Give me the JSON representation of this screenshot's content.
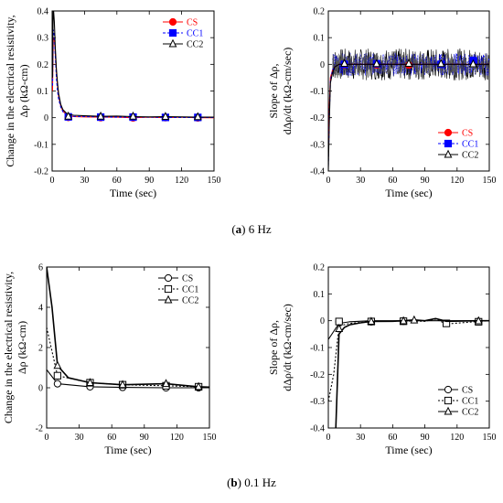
{
  "captions": {
    "a_letter": "a",
    "a_rest": "6 Hz",
    "b_letter": "b",
    "b_rest": "0.1 Hz"
  },
  "chart_data": [
    {
      "id": "a_left",
      "type": "line",
      "xlabel": "Time (sec)",
      "ylabel_line1": "Change in the electrical resistivity,",
      "ylabel_line2": "Δρ (kΩ-cm)",
      "xlim": [
        0,
        150
      ],
      "ylim": [
        -0.2,
        0.4
      ],
      "xticks": [
        "0",
        "30",
        "60",
        "90",
        "120",
        "150"
      ],
      "yticks": [
        "-0.2",
        "-0.1",
        "0",
        "0.1",
        "0.2",
        "0.3",
        "0.4"
      ],
      "legend_position": "top-right",
      "series": [
        {
          "name": "CS",
          "color": "#ff0000",
          "marker": "circle-filled",
          "dash": "",
          "x": [
            0.3,
            1,
            2,
            3,
            4,
            5,
            6,
            8,
            10,
            13,
            15,
            20,
            30,
            45,
            60,
            75,
            90,
            105,
            120,
            135,
            150
          ],
          "y": [
            0.1,
            0.29,
            0.3,
            0.24,
            0.17,
            0.12,
            0.08,
            0.045,
            0.025,
            0.012,
            0.008,
            0.004,
            0.003,
            0.002,
            0.002,
            0.0,
            0.002,
            0.0,
            0.002,
            0.0,
            0.0
          ],
          "marker_x": [
            15,
            45,
            75,
            105,
            135
          ],
          "marker_y": [
            0.001,
            0.0,
            -0.001,
            0.0,
            -0.001
          ]
        },
        {
          "name": "CC1",
          "color": "#0000ff",
          "marker": "square-filled",
          "dash": "3,2",
          "x": [
            0.3,
            1,
            2,
            3,
            4,
            5,
            6,
            8,
            10,
            13,
            15,
            20,
            30,
            45,
            60,
            75,
            90,
            105,
            120,
            135,
            150
          ],
          "y": [
            0.12,
            0.33,
            0.31,
            0.23,
            0.15,
            0.1,
            0.07,
            0.04,
            0.022,
            0.012,
            0.008,
            0.005,
            0.004,
            0.003,
            0.002,
            0.002,
            0.002,
            0.001,
            0.001,
            0.001,
            0.001
          ],
          "marker_x": [
            15,
            45,
            75,
            105,
            135
          ],
          "marker_y": [
            0.003,
            0.002,
            0.002,
            0.001,
            0.001
          ]
        },
        {
          "name": "CC2",
          "color": "#000000",
          "marker": "triangle-open",
          "dash": "",
          "x": [
            0.3,
            1,
            2,
            3,
            4,
            5,
            6,
            8,
            10,
            13,
            15,
            20,
            30,
            45,
            60,
            75,
            90,
            105,
            120,
            135,
            150
          ],
          "y": [
            0.15,
            0.42,
            0.36,
            0.26,
            0.18,
            0.13,
            0.09,
            0.05,
            0.03,
            0.018,
            0.012,
            0.009,
            0.007,
            0.005,
            0.006,
            0.004,
            0.003,
            0.004,
            0.003,
            0.002,
            0.002
          ],
          "marker_x": [
            15,
            45,
            75,
            105,
            135
          ],
          "marker_y": [
            0.005,
            0.005,
            0.005,
            0.004,
            0.003
          ]
        }
      ]
    },
    {
      "id": "a_right",
      "type": "line",
      "xlabel": "Time (sec)",
      "ylabel_line1": "Slope of Δρ,",
      "ylabel_line2": "dΔρ/dt (kΩ-cm/sec)",
      "xlim": [
        0,
        150
      ],
      "ylim": [
        -0.4,
        0.2
      ],
      "xticks": [
        "0",
        "30",
        "60",
        "90",
        "120",
        "150"
      ],
      "yticks": [
        "-0.4",
        "-0.3",
        "-0.2",
        "-0.1",
        "0",
        "0.1",
        "0.2"
      ],
      "legend_position": "bottom-right",
      "noise_amplitude": 0.06,
      "series": [
        {
          "name": "CS",
          "color": "#ff0000",
          "marker": "circle-filled",
          "dash": "",
          "x": [
            0,
            1,
            2,
            4,
            6,
            10,
            15,
            150
          ],
          "y": [
            -0.35,
            -0.15,
            -0.05,
            -0.02,
            -0.01,
            0,
            0,
            0
          ],
          "marker_x": [
            15,
            45,
            75
          ],
          "marker_y": [
            -0.002,
            -0.002,
            -0.003
          ]
        },
        {
          "name": "CC1",
          "color": "#0000ff",
          "marker": "square-filled",
          "dash": "3,2",
          "x": [
            0,
            1,
            2,
            4,
            6,
            10,
            15,
            150
          ],
          "y": [
            -0.38,
            -0.18,
            -0.06,
            -0.02,
            -0.01,
            0,
            0,
            0
          ],
          "marker_x": [
            15,
            45,
            105,
            135
          ],
          "marker_y": [
            0.0,
            0.002,
            0.0,
            0.015
          ]
        },
        {
          "name": "CC2",
          "color": "#000000",
          "marker": "triangle-open",
          "dash": "",
          "x": [
            0,
            1,
            2,
            4,
            6,
            10,
            15,
            150
          ],
          "y": [
            -0.4,
            -0.2,
            -0.07,
            -0.03,
            -0.01,
            0,
            0,
            0
          ],
          "marker_x": [
            15,
            45,
            75,
            105,
            135
          ],
          "marker_y": [
            0.003,
            0.002,
            0.003,
            0.002,
            0.001
          ]
        }
      ]
    },
    {
      "id": "b_left",
      "type": "line",
      "xlabel": "Time (sec)",
      "ylabel_line1": "Change in the electrical resistivity,",
      "ylabel_line2": "Δρ (kΩ-cm)",
      "xlim": [
        0,
        150
      ],
      "ylim": [
        -2,
        6
      ],
      "xticks": [
        "0",
        "30",
        "60",
        "90",
        "120",
        "150"
      ],
      "yticks": [
        "-2",
        "0",
        "2",
        "4",
        "6"
      ],
      "legend_position": "top-right",
      "series": [
        {
          "name": "CS",
          "color": "#000000",
          "marker": "circle-open",
          "dash": "",
          "x": [
            0,
            10,
            40,
            70,
            110,
            140,
            150
          ],
          "y": [
            0.9,
            0.2,
            0.05,
            0.02,
            0.0,
            0.0,
            0.0
          ],
          "marker_x": [
            10,
            40,
            70,
            110,
            140
          ],
          "marker_y": [
            0.2,
            0.05,
            0.02,
            0.0,
            0.0
          ]
        },
        {
          "name": "CC1",
          "color": "#000000",
          "marker": "square-open",
          "dash": "2,2",
          "x": [
            0,
            10,
            40,
            70,
            110,
            140,
            150
          ],
          "y": [
            3.0,
            0.6,
            0.25,
            0.15,
            0.1,
            0.05,
            0.03
          ],
          "marker_x": [
            10,
            40,
            70,
            110,
            140
          ],
          "marker_y": [
            0.6,
            0.25,
            0.15,
            0.1,
            0.05
          ]
        },
        {
          "name": "CC2",
          "color": "#000000",
          "marker": "triangle-open",
          "dash": "",
          "x": [
            0,
            5,
            10,
            20,
            40,
            70,
            110,
            140,
            150
          ],
          "y": [
            6.0,
            4.0,
            1.1,
            0.5,
            0.25,
            0.15,
            0.2,
            0.05,
            0.03
          ],
          "marker_x": [
            10,
            40,
            70,
            110,
            140
          ],
          "marker_y": [
            1.1,
            0.25,
            0.15,
            0.2,
            0.05
          ]
        }
      ]
    },
    {
      "id": "b_right",
      "type": "line",
      "xlabel": "Time (sec)",
      "ylabel_line1": "Slope of Δρ,",
      "ylabel_line2": "dΔρ/dt (kΩ-cm/sec)",
      "xlim": [
        0,
        150
      ],
      "ylim": [
        -0.4,
        0.2
      ],
      "xticks": [
        "0",
        "30",
        "60",
        "90",
        "120",
        "150"
      ],
      "yticks": [
        "-0.4",
        "-0.3",
        "-0.2",
        "-0.1",
        "0",
        "0.1",
        "0.2"
      ],
      "legend_position": "bottom-right",
      "series": [
        {
          "name": "CS",
          "color": "#000000",
          "marker": "circle-open",
          "dash": "",
          "x": [
            0,
            10,
            20,
            40,
            70,
            100,
            110,
            140,
            150
          ],
          "y": [
            -0.07,
            -0.01,
            -0.004,
            0.0,
            0.0,
            0.0,
            0.0,
            0.0,
            0.0
          ],
          "marker_x": [
            10,
            40,
            70,
            140
          ],
          "marker_y": [
            -0.004,
            -0.004,
            -0.002,
            -0.003
          ]
        },
        {
          "name": "CC1",
          "color": "#000000",
          "marker": "square-open",
          "dash": "2,2",
          "x": [
            0,
            5,
            10,
            20,
            40,
            70,
            90,
            100,
            110,
            140,
            150
          ],
          "y": [
            -0.3,
            -0.2,
            -0.02,
            -0.01,
            -0.003,
            -0.001,
            -0.002,
            0.006,
            -0.012,
            -0.003,
            0.0
          ],
          "marker_x": [
            10,
            40,
            70,
            110,
            140
          ],
          "marker_y": [
            -0.003,
            -0.003,
            -0.002,
            -0.01,
            -0.004
          ]
        },
        {
          "name": "CC2",
          "color": "#000000",
          "marker": "triangle-open",
          "dash": "",
          "x": [
            7,
            10,
            15,
            20,
            30,
            40,
            60,
            70,
            80,
            90,
            100,
            110,
            140,
            150
          ],
          "y": [
            -0.4,
            -0.05,
            -0.025,
            -0.015,
            -0.008,
            -0.003,
            -0.002,
            0.0,
            0.003,
            0.0,
            0.008,
            -0.002,
            0.0,
            0.0
          ],
          "marker_x": [
            10,
            40,
            70,
            80,
            140
          ],
          "marker_y": [
            -0.03,
            -0.003,
            -0.001,
            0.002,
            -0.001
          ]
        }
      ]
    }
  ]
}
